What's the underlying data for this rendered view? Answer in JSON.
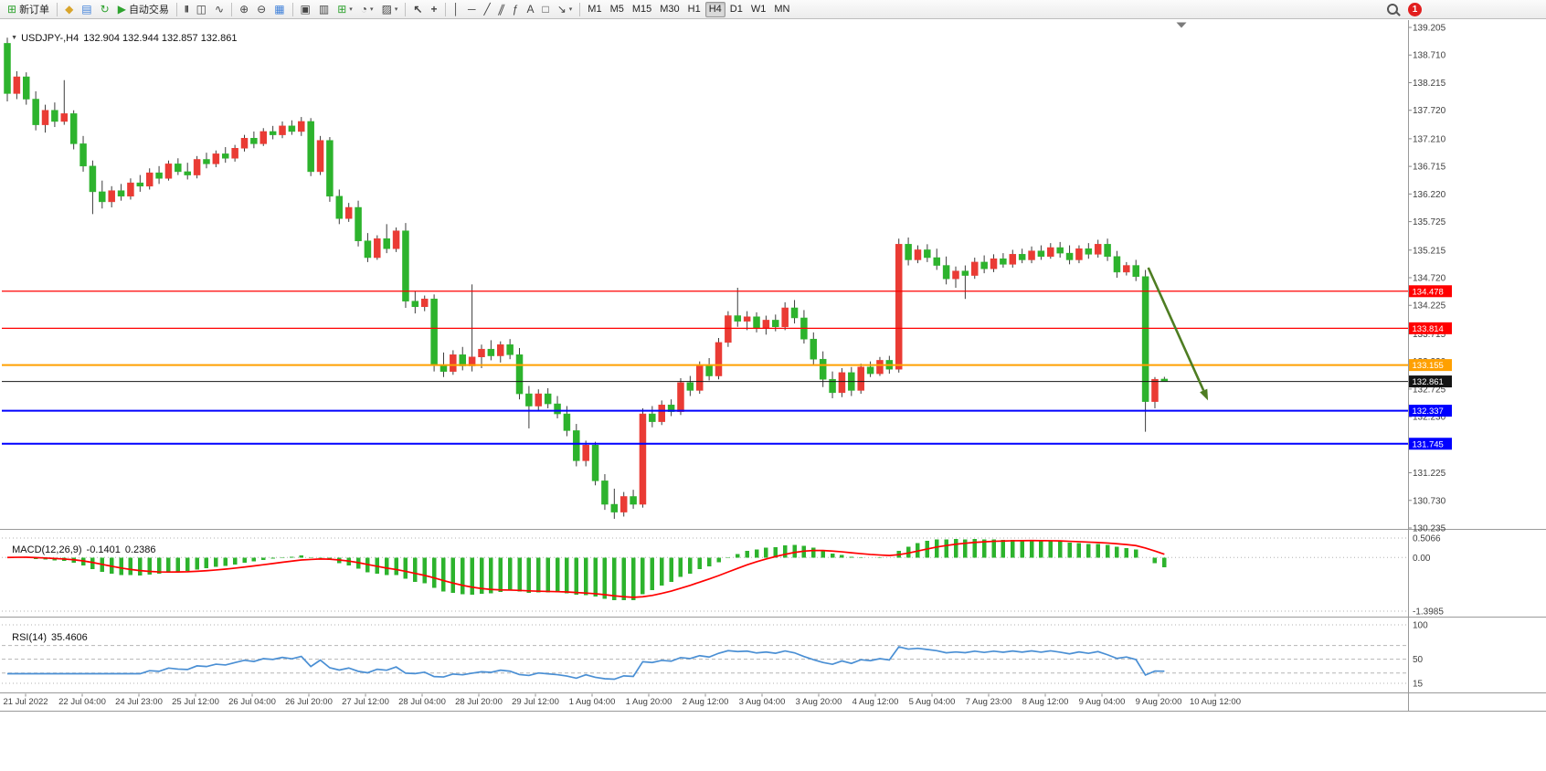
{
  "toolbar": {
    "items": [
      {
        "name": "new-order",
        "icon": "chart-plus-icon",
        "glyph": "⊞",
        "color": "#2fa32f",
        "label": "新订单"
      },
      {
        "sep": true
      },
      {
        "name": "metaeditor",
        "icon": "metaeditor-icon",
        "glyph": "◆",
        "color": "#d9a52c"
      },
      {
        "name": "market-watch",
        "icon": "market-watch-icon",
        "glyph": "▤",
        "color": "#3d7fd9"
      },
      {
        "name": "refresh",
        "icon": "refresh-icon",
        "glyph": "↻",
        "color": "#2fa32f"
      },
      {
        "name": "algo-trading",
        "icon": "play-icon",
        "glyph": "▶",
        "color": "#2fa32f",
        "label": "自动交易"
      },
      {
        "sep": true
      },
      {
        "name": "bars-chart",
        "icon": "bars-chart-icon",
        "glyph": "|||",
        "small": true
      },
      {
        "name": "candles-chart",
        "icon": "candles-chart-icon",
        "glyph": "◫"
      },
      {
        "name": "line-chart",
        "icon": "line-chart-icon",
        "glyph": "∿"
      },
      {
        "sep": true
      },
      {
        "name": "zoom-in",
        "icon": "zoom-in-icon",
        "glyph": "⊕"
      },
      {
        "name": "zoom-out",
        "icon": "zoom-out-icon",
        "glyph": "⊖"
      },
      {
        "name": "grid",
        "icon": "grid-icon",
        "glyph": "▦",
        "color": "#3d7fd9"
      },
      {
        "sep": true
      },
      {
        "name": "tile-windows",
        "icon": "tile-windows-icon",
        "glyph": "▣"
      },
      {
        "name": "cascade-windows",
        "icon": "cascade-windows-icon",
        "glyph": "▥"
      },
      {
        "name": "new-chart",
        "icon": "new-chart-icon",
        "glyph": "⊞",
        "color": "#2fa32f",
        "caret": true
      },
      {
        "name": "periods",
        "icon": "clock-icon",
        "glyph": "◔",
        "caret": true
      },
      {
        "name": "templates",
        "icon": "templates-icon",
        "glyph": "▨",
        "caret": true
      },
      {
        "sep": true
      },
      {
        "name": "cursor",
        "icon": "cursor-icon",
        "glyph": "↖",
        "bold": true
      },
      {
        "name": "crosshair",
        "icon": "crosshair-icon",
        "glyph": "+",
        "bold": true
      },
      {
        "sep": true
      },
      {
        "name": "vertical-line",
        "icon": "vertical-line-icon",
        "glyph": "│"
      },
      {
        "name": "horizontal-line",
        "icon": "horizontal-line-icon",
        "glyph": "─"
      },
      {
        "name": "trendline",
        "icon": "trendline-icon",
        "glyph": "╱"
      },
      {
        "name": "channel",
        "icon": "channel-icon",
        "glyph": "∥",
        "skew": true
      },
      {
        "name": "fibonacci",
        "icon": "fibonacci-icon",
        "glyph": "ƒ"
      },
      {
        "name": "text",
        "icon": "text-icon",
        "glyph": "A"
      },
      {
        "name": "label",
        "icon": "label-icon",
        "glyph": "□"
      },
      {
        "name": "arrows",
        "icon": "arrows-icon",
        "glyph": "↘",
        "caret": true
      },
      {
        "sep": true
      }
    ],
    "timeframes": [
      "M1",
      "M5",
      "M15",
      "M30",
      "H1",
      "H4",
      "D1",
      "W1",
      "MN"
    ],
    "active_timeframe": "H4",
    "notification_count": "1"
  },
  "chart": {
    "symbol_period": "USDJPY-,H4",
    "ohlc_text": "132.904 132.944 132.857 132.861"
  },
  "chart_data": {
    "type": "candlestick",
    "symbol": "USDJPY-",
    "timeframe": "H4",
    "current_ohlc": {
      "open": 132.904,
      "high": 132.944,
      "low": 132.857,
      "close": 132.861
    },
    "colors": {
      "up": "#ea3b34",
      "down": "#2db32d",
      "wick": "#3c3c3c",
      "background": "#ffffff",
      "axis_text": "#3f3f3f"
    },
    "y_axis": {
      "max": 139.205,
      "min": 130.235,
      "ticks": [
        139.205,
        138.71,
        138.215,
        137.72,
        137.21,
        136.715,
        136.22,
        135.725,
        135.215,
        134.72,
        134.225,
        133.715,
        133.22,
        132.725,
        132.23,
        131.725,
        131.225,
        130.73,
        130.235
      ]
    },
    "x_labels": [
      "21 Jul 2022",
      "22 Jul 04:00",
      "24 Jul 23:00",
      "25 Jul 12:00",
      "26 Jul 04:00",
      "26 Jul 20:00",
      "27 Jul 12:00",
      "28 Jul 04:00",
      "28 Jul 20:00",
      "29 Jul 12:00",
      "1 Aug 04:00",
      "1 Aug 20:00",
      "2 Aug 12:00",
      "3 Aug 04:00",
      "3 Aug 20:00",
      "4 Aug 12:00",
      "5 Aug 04:00",
      "7 Aug 23:00",
      "8 Aug 12:00",
      "9 Aug 04:00",
      "9 Aug 20:00",
      "10 Aug 12:00"
    ],
    "candles": [
      [
        138.92,
        139.02,
        137.88,
        138.02
      ],
      [
        138.02,
        138.42,
        137.92,
        138.32
      ],
      [
        138.32,
        138.4,
        137.82,
        137.92
      ],
      [
        137.92,
        138.06,
        137.36,
        137.46
      ],
      [
        137.46,
        137.82,
        137.32,
        137.72
      ],
      [
        137.72,
        137.86,
        137.42,
        137.52
      ],
      [
        137.52,
        138.26,
        137.46,
        137.66
      ],
      [
        137.66,
        137.72,
        137.02,
        137.12
      ],
      [
        137.12,
        137.26,
        136.62,
        136.72
      ],
      [
        136.72,
        136.82,
        135.86,
        136.26
      ],
      [
        136.26,
        136.46,
        135.96,
        136.08
      ],
      [
        136.08,
        136.36,
        135.98,
        136.28
      ],
      [
        136.28,
        136.4,
        136.1,
        136.18
      ],
      [
        136.18,
        136.5,
        136.12,
        136.42
      ],
      [
        136.42,
        136.56,
        136.26,
        136.36
      ],
      [
        136.36,
        136.68,
        136.3,
        136.6
      ],
      [
        136.6,
        136.72,
        136.4,
        136.5
      ],
      [
        136.5,
        136.82,
        136.46,
        136.76
      ],
      [
        136.76,
        136.86,
        136.56,
        136.62
      ],
      [
        136.62,
        136.78,
        136.48,
        136.56
      ],
      [
        136.56,
        136.9,
        136.5,
        136.84
      ],
      [
        136.84,
        136.96,
        136.68,
        136.76
      ],
      [
        136.76,
        137.0,
        136.7,
        136.94
      ],
      [
        136.94,
        137.06,
        136.78,
        136.86
      ],
      [
        136.86,
        137.1,
        136.8,
        137.04
      ],
      [
        137.04,
        137.28,
        136.98,
        137.22
      ],
      [
        137.22,
        137.34,
        137.04,
        137.12
      ],
      [
        137.12,
        137.4,
        137.08,
        137.34
      ],
      [
        137.34,
        137.44,
        137.2,
        137.28
      ],
      [
        137.28,
        137.52,
        137.22,
        137.44
      ],
      [
        137.44,
        137.54,
        137.28,
        137.34
      ],
      [
        137.34,
        137.6,
        137.26,
        137.52
      ],
      [
        137.52,
        137.58,
        136.54,
        136.62
      ],
      [
        136.62,
        137.26,
        136.56,
        137.18
      ],
      [
        137.18,
        137.24,
        136.08,
        136.18
      ],
      [
        136.18,
        136.3,
        135.68,
        135.78
      ],
      [
        135.78,
        136.06,
        135.72,
        135.98
      ],
      [
        135.98,
        136.1,
        135.28,
        135.38
      ],
      [
        135.38,
        135.52,
        135.0,
        135.08
      ],
      [
        135.08,
        135.48,
        135.04,
        135.42
      ],
      [
        135.42,
        135.68,
        135.16,
        135.24
      ],
      [
        135.24,
        135.62,
        135.18,
        135.56
      ],
      [
        135.56,
        135.7,
        134.18,
        134.3
      ],
      [
        134.3,
        134.48,
        134.08,
        134.2
      ],
      [
        134.2,
        134.4,
        134.12,
        134.34
      ],
      [
        134.34,
        134.42,
        133.04,
        133.16
      ],
      [
        133.16,
        133.38,
        132.94,
        133.04
      ],
      [
        133.04,
        133.42,
        132.98,
        133.34
      ],
      [
        133.34,
        133.48,
        133.06,
        133.14
      ],
      [
        133.14,
        134.6,
        133.04,
        133.3
      ],
      [
        133.3,
        133.52,
        133.1,
        133.44
      ],
      [
        133.44,
        133.6,
        133.24,
        133.32
      ],
      [
        133.32,
        133.58,
        133.2,
        133.52
      ],
      [
        133.52,
        133.62,
        133.26,
        133.34
      ],
      [
        133.34,
        133.46,
        132.54,
        132.64
      ],
      [
        132.64,
        132.78,
        132.02,
        132.42
      ],
      [
        132.42,
        132.72,
        132.34,
        132.64
      ],
      [
        132.64,
        132.74,
        132.38,
        132.46
      ],
      [
        132.46,
        132.6,
        132.2,
        132.28
      ],
      [
        132.28,
        132.42,
        131.88,
        131.98
      ],
      [
        131.98,
        132.1,
        131.34,
        131.44
      ],
      [
        131.44,
        131.8,
        131.34,
        131.72
      ],
      [
        131.72,
        131.78,
        131.0,
        131.08
      ],
      [
        131.08,
        131.2,
        130.56,
        130.66
      ],
      [
        130.66,
        130.94,
        130.4,
        130.52
      ],
      [
        130.52,
        130.88,
        130.44,
        130.8
      ],
      [
        130.8,
        130.92,
        130.58,
        130.66
      ],
      [
        130.66,
        132.38,
        130.6,
        132.28
      ],
      [
        132.28,
        132.42,
        132.04,
        132.14
      ],
      [
        132.14,
        132.52,
        132.08,
        132.44
      ],
      [
        132.44,
        132.54,
        132.24,
        132.32
      ],
      [
        132.32,
        132.92,
        132.26,
        132.84
      ],
      [
        132.84,
        132.96,
        132.6,
        132.7
      ],
      [
        132.7,
        133.22,
        132.64,
        133.14
      ],
      [
        133.14,
        133.28,
        132.88,
        132.96
      ],
      [
        132.96,
        133.64,
        132.9,
        133.56
      ],
      [
        133.56,
        134.12,
        133.48,
        134.04
      ],
      [
        134.04,
        134.54,
        133.84,
        133.94
      ],
      [
        133.94,
        134.12,
        133.78,
        134.02
      ],
      [
        134.02,
        134.1,
        133.74,
        133.82
      ],
      [
        133.82,
        134.04,
        133.7,
        133.96
      ],
      [
        133.96,
        134.06,
        133.76,
        133.84
      ],
      [
        133.84,
        134.28,
        133.78,
        134.18
      ],
      [
        134.18,
        134.32,
        133.9,
        134.0
      ],
      [
        134.0,
        134.14,
        133.54,
        133.62
      ],
      [
        133.62,
        133.74,
        133.16,
        133.26
      ],
      [
        133.26,
        133.4,
        132.76,
        132.9
      ],
      [
        132.9,
        133.04,
        132.56,
        132.66
      ],
      [
        132.66,
        133.1,
        132.58,
        133.02
      ],
      [
        133.02,
        133.12,
        132.6,
        132.7
      ],
      [
        132.7,
        133.18,
        132.64,
        133.12
      ],
      [
        133.12,
        133.22,
        132.94,
        133.0
      ],
      [
        133.0,
        133.3,
        132.96,
        133.24
      ],
      [
        133.24,
        133.32,
        133.0,
        133.08
      ],
      [
        133.08,
        135.42,
        133.02,
        135.32
      ],
      [
        135.32,
        135.44,
        134.94,
        135.04
      ],
      [
        135.04,
        135.3,
        134.98,
        135.22
      ],
      [
        135.22,
        135.32,
        135.0,
        135.08
      ],
      [
        135.08,
        135.24,
        134.86,
        134.94
      ],
      [
        134.94,
        135.1,
        134.6,
        134.7
      ],
      [
        134.7,
        134.92,
        134.54,
        134.84
      ],
      [
        134.84,
        134.94,
        134.34,
        134.76
      ],
      [
        134.76,
        135.08,
        134.7,
        135.0
      ],
      [
        135.0,
        135.12,
        134.8,
        134.88
      ],
      [
        134.88,
        135.14,
        134.82,
        135.06
      ],
      [
        135.06,
        135.16,
        134.9,
        134.96
      ],
      [
        134.96,
        135.22,
        134.9,
        135.14
      ],
      [
        135.14,
        135.24,
        134.98,
        135.04
      ],
      [
        135.04,
        135.28,
        134.98,
        135.2
      ],
      [
        135.2,
        135.3,
        135.04,
        135.1
      ],
      [
        135.1,
        135.34,
        135.06,
        135.26
      ],
      [
        135.26,
        135.36,
        135.08,
        135.16
      ],
      [
        135.16,
        135.3,
        134.96,
        135.04
      ],
      [
        135.04,
        135.3,
        134.98,
        135.24
      ],
      [
        135.24,
        135.34,
        135.06,
        135.14
      ],
      [
        135.14,
        135.4,
        135.08,
        135.32
      ],
      [
        135.32,
        135.42,
        135.02,
        135.1
      ],
      [
        135.1,
        135.2,
        134.72,
        134.82
      ],
      [
        134.82,
        135.0,
        134.76,
        134.94
      ],
      [
        134.94,
        135.04,
        134.66,
        134.74
      ],
      [
        134.74,
        134.86,
        131.96,
        132.5
      ],
      [
        132.5,
        132.94,
        132.38,
        132.9
      ],
      [
        132.904,
        132.944,
        132.857,
        132.861
      ]
    ],
    "hlines": [
      {
        "price": 134.478,
        "label": "134.478",
        "color": "#ff0000",
        "width": 1.3
      },
      {
        "price": 133.814,
        "label": "133.814",
        "color": "#ff0000",
        "width": 1.3
      },
      {
        "price": 133.155,
        "label": "133.155",
        "color": "#ffa000",
        "width": 2
      },
      {
        "price": 132.337,
        "label": "132.337",
        "color": "#0000ff",
        "width": 2
      },
      {
        "price": 131.745,
        "label": "131.745",
        "color": "#0000ff",
        "width": 2
      },
      {
        "price": 132.861,
        "label": "132.861",
        "color": "#141414",
        "width": 1,
        "current": true
      }
    ],
    "arrow": {
      "from_bar": 120.3,
      "from_price": 134.9,
      "to_bar": 126.6,
      "to_price": 132.52,
      "color": "#4e7d22"
    },
    "indicators": {
      "macd": {
        "label": "MACD(12,26,9)",
        "value_main": "-0.1401",
        "value_signal": "0.2386",
        "axis_labels": [
          "0.5066",
          "0.00",
          "-1.3985"
        ],
        "grid_values": [
          0.5066,
          0,
          -1.3985
        ],
        "range": {
          "max": 0.5066,
          "min": -1.3985
        },
        "histogram_color": "#2db32d",
        "signal_color": "#ff0000"
      },
      "rsi": {
        "label": "RSI(14)",
        "value": "35.4606",
        "axis_labels": [
          "100",
          "50",
          "15"
        ],
        "axis_values": [
          100,
          50,
          15
        ],
        "levels": [
          70,
          50,
          30
        ],
        "range": {
          "max": 100,
          "min": 0
        },
        "line_color": "#4a8fd4"
      }
    }
  }
}
